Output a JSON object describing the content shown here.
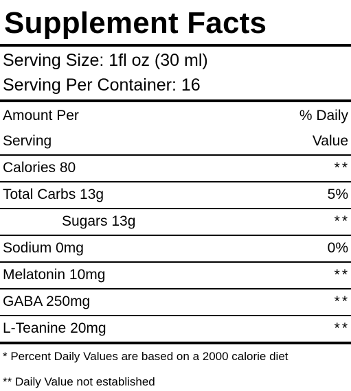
{
  "label": {
    "title": "Supplement Facts",
    "serving_size": "Serving Size: 1fl oz (30 ml)",
    "servings_per_container": "Serving Per Container: 16"
  },
  "header": {
    "amount_per_line1": "Amount Per",
    "amount_per_line2": "Serving",
    "daily_value_line1": "% Daily",
    "daily_value_line2": "Value"
  },
  "nutrients": [
    {
      "name": "Calories 80",
      "dv": "**"
    },
    {
      "name": "Total Carbs 13g",
      "dv": "5%"
    },
    {
      "name": "Sugars 13g",
      "dv": "**"
    },
    {
      "name": "Sodium 0mg",
      "dv": "0%"
    },
    {
      "name": "Melatonin 10mg",
      "dv": "**"
    },
    {
      "name": "GABA 250mg",
      "dv": "**"
    },
    {
      "name": "L-Teanine 20mg",
      "dv": "**"
    }
  ],
  "footnotes": {
    "percent_note": "* Percent Daily Values are based on a 2000 calorie diet",
    "not_established": "** Daily Value not established"
  }
}
